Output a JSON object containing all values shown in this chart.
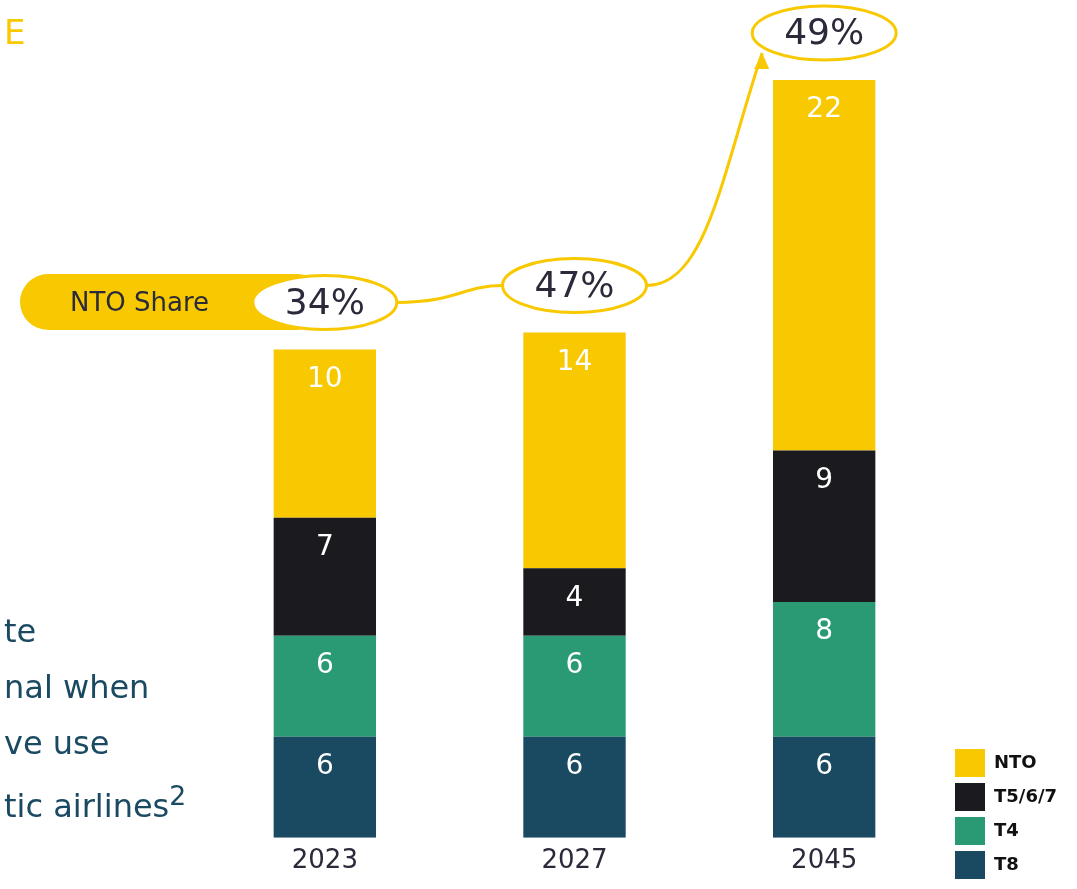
{
  "chart_data": {
    "type": "bar",
    "stacked": true,
    "data_labels": true,
    "grid": false,
    "legend": "bottom right",
    "categories": [
      "2023",
      "2027",
      "2045"
    ],
    "tick_labels": "x",
    "series": [
      {
        "name": "T8",
        "color": "#1a4a62",
        "values": [
          6,
          6,
          6
        ]
      },
      {
        "name": "T4",
        "color": "#2a9a74",
        "values": [
          6,
          6,
          8
        ]
      },
      {
        "name": "T5/6/7",
        "color": "#1b1a1f",
        "values": [
          7,
          4,
          9
        ]
      },
      {
        "name": "NTO",
        "color": "#f8c900",
        "values": [
          10,
          14,
          22
        ]
      }
    ],
    "annotations": [
      "E",
      "NTO Share",
      "34%",
      "47%",
      "49%",
      "te",
      "nal when",
      "ve use",
      "tic airlines$^{2}$"
    ]
  }
}
